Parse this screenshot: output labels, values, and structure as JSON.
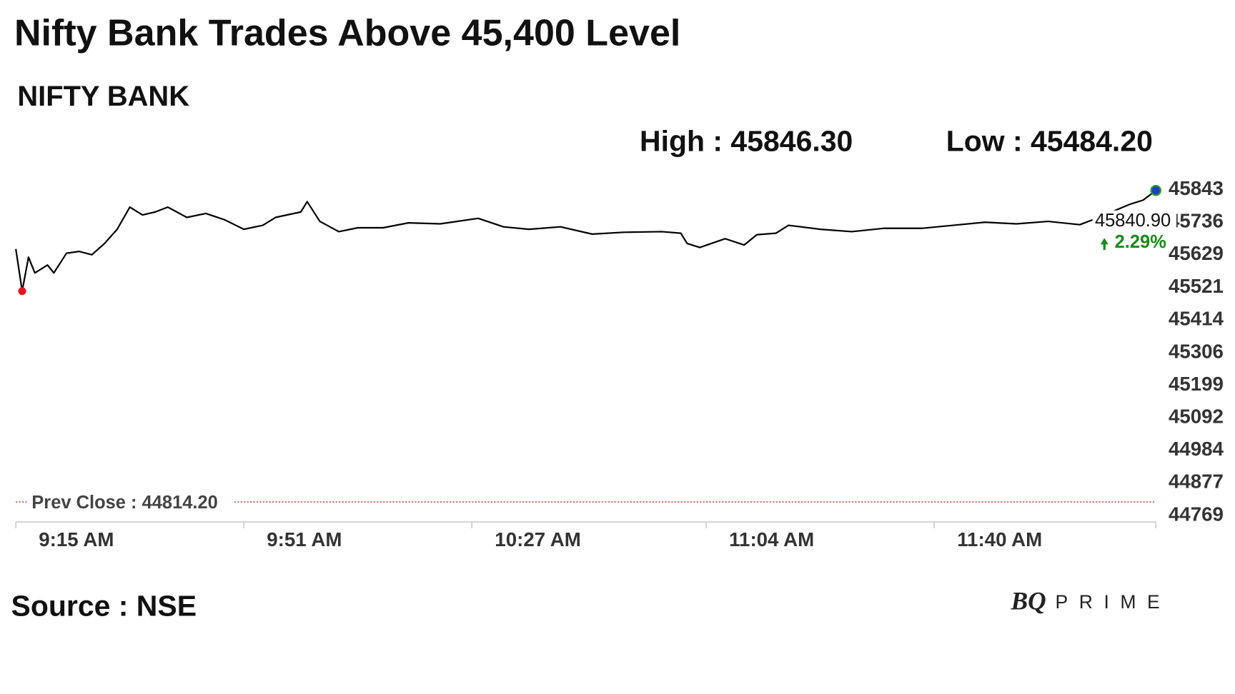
{
  "chart_data": {
    "type": "line",
    "title": "Nifty Bank Trades Above 45,400 Level",
    "subtitle": "NIFTY BANK",
    "annotations": [
      "High : 45846.30",
      "Low : 45484.20"
    ],
    "prev_close": {
      "value": 44814.2,
      "label": "Prev Close : 44814.20"
    },
    "last_label": "45840.90",
    "change_label": "2.29%",
    "source": "Source : NSE",
    "logo": {
      "mark": "BQ",
      "word": "PRIME"
    },
    "x": [
      555,
      556,
      557,
      558,
      560,
      561,
      563,
      565,
      567,
      569,
      571,
      573,
      575,
      577,
      579,
      582,
      585,
      588,
      591,
      594,
      596,
      600,
      601,
      603,
      606,
      609,
      613,
      617,
      622,
      628,
      632,
      636,
      641,
      646,
      651,
      657,
      660,
      661,
      663,
      667,
      670,
      672,
      675,
      677,
      682,
      687,
      692,
      698,
      703,
      708,
      713,
      718,
      723,
      725,
      731,
      733,
      735
    ],
    "series": [
      {
        "name": "NIFTY BANK",
        "color": "#000000",
        "values": [
          45648,
          45509,
          45621,
          45569,
          45595,
          45569,
          45634,
          45640,
          45629,
          45666,
          45713,
          45786,
          45760,
          45770,
          45786,
          45752,
          45765,
          45744,
          45713,
          45726,
          45752,
          45770,
          45804,
          45739,
          45705,
          45718,
          45718,
          45734,
          45731,
          45749,
          45721,
          45713,
          45721,
          45697,
          45703,
          45705,
          45700,
          45666,
          45653,
          45682,
          45661,
          45695,
          45700,
          45726,
          45713,
          45705,
          45716,
          45716,
          45726,
          45736,
          45731,
          45739,
          45728,
          45744,
          45796,
          45809,
          45840.9
        ]
      }
    ],
    "xlim": [
      555,
      735
    ],
    "xticks": [
      {
        "value": 555,
        "label": "9:15 AM"
      },
      {
        "value": 591,
        "label": "9:51 AM"
      },
      {
        "value": 627,
        "label": "10:27 AM"
      },
      {
        "value": 664,
        "label": "11:04 AM"
      },
      {
        "value": 700,
        "label": "11:40 AM"
      }
    ],
    "ylim": [
      44769,
      45843
    ],
    "yticks": [
      45843,
      45736,
      45629,
      45521,
      45414,
      45306,
      45199,
      45092,
      44984,
      44877,
      44769
    ],
    "grid": false,
    "low_color": "#e8141c",
    "last_color": "#1e3ec8",
    "prev_close_color": "#b22222"
  }
}
